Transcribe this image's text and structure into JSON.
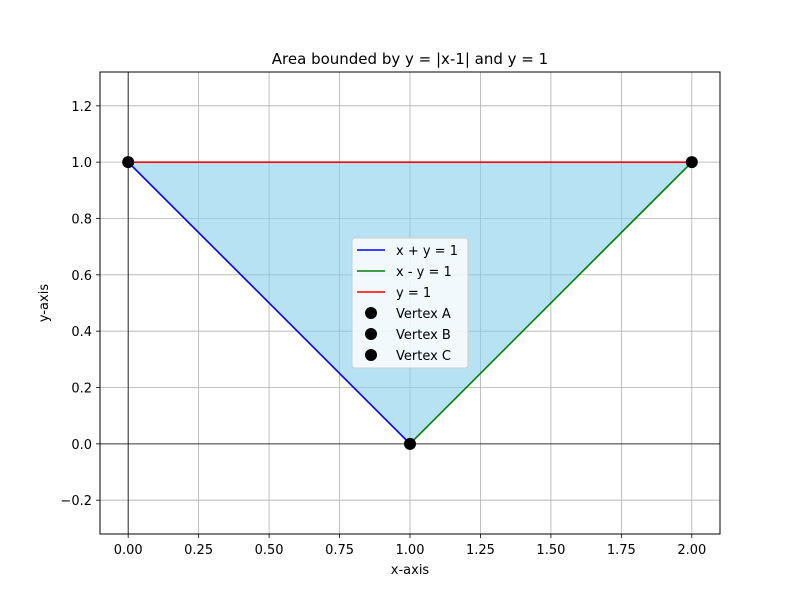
{
  "chart_data": {
    "type": "line",
    "title": "Area bounded by y = |x-1| and y = 1",
    "xlabel": "x-axis",
    "ylabel": "y-axis",
    "xlim": [
      -0.1,
      2.1
    ],
    "ylim": [
      -0.32,
      1.32
    ],
    "xticks": [
      0.0,
      0.25,
      0.5,
      0.75,
      1.0,
      1.25,
      1.5,
      1.75,
      2.0
    ],
    "xtick_labels": [
      "0.00",
      "0.25",
      "0.50",
      "0.75",
      "1.00",
      "1.25",
      "1.50",
      "1.75",
      "2.00"
    ],
    "yticks": [
      -0.2,
      0.0,
      0.2,
      0.4,
      0.6,
      0.8,
      1.0,
      1.2
    ],
    "ytick_labels": [
      "−0.2",
      "0.0",
      "0.2",
      "0.4",
      "0.6",
      "0.8",
      "1.0",
      "1.2"
    ],
    "grid": true,
    "legend_placement": "center",
    "fill_region": {
      "x": [
        0,
        1,
        2
      ],
      "y": [
        1,
        0,
        1
      ],
      "color": "#87CEEB",
      "alpha": 0.6
    },
    "series": [
      {
        "name": "x + y = 1",
        "kind": "line",
        "color": "#0000ff",
        "x": [
          0,
          1
        ],
        "y": [
          1,
          0
        ]
      },
      {
        "name": "x - y = 1",
        "kind": "line",
        "color": "#008000",
        "x": [
          1,
          2
        ],
        "y": [
          0,
          1
        ]
      },
      {
        "name": "y = 1",
        "kind": "line",
        "color": "#ff0000",
        "x": [
          0,
          2
        ],
        "y": [
          1,
          1
        ]
      },
      {
        "name": "Vertex A",
        "kind": "point",
        "color": "#000000",
        "x": [
          0
        ],
        "y": [
          1
        ]
      },
      {
        "name": "Vertex B",
        "kind": "point",
        "color": "#000000",
        "x": [
          1
        ],
        "y": [
          0
        ]
      },
      {
        "name": "Vertex C",
        "kind": "point",
        "color": "#000000",
        "x": [
          2
        ],
        "y": [
          1
        ]
      }
    ],
    "reference_lines": {
      "x0": true,
      "y0": true,
      "color": "#000000"
    }
  }
}
